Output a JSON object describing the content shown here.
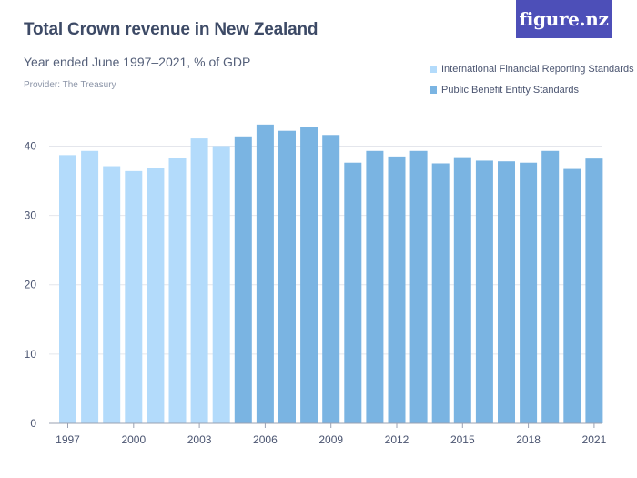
{
  "brand": {
    "logo_text": "figure.nz"
  },
  "chart_data": {
    "type": "bar",
    "title": "Total Crown revenue in New Zealand",
    "subtitle": "Year ended June 1997–2021, % of GDP",
    "provider": "Provider: The Treasury",
    "categories": [
      "1997",
      "1998",
      "1999",
      "2000",
      "2001",
      "2002",
      "2003",
      "2004",
      "2005",
      "2006",
      "2007",
      "2008",
      "2009",
      "2010",
      "2011",
      "2012",
      "2013",
      "2014",
      "2015",
      "2016",
      "2017",
      "2018",
      "2019",
      "2020",
      "2021"
    ],
    "series": [
      {
        "name": "International Financial Reporting Standards",
        "color": "#b3dbfb",
        "values": [
          38.7,
          39.3,
          37.1,
          36.4,
          36.9,
          38.3,
          41.1,
          40.0,
          null,
          null,
          null,
          null,
          null,
          null,
          null,
          null,
          null,
          null,
          null,
          null,
          null,
          null,
          null,
          null,
          null
        ]
      },
      {
        "name": "Public Benefit Entity Standards",
        "color": "#7ab4e2",
        "values": [
          null,
          null,
          null,
          null,
          null,
          null,
          null,
          null,
          41.4,
          43.1,
          42.2,
          42.8,
          41.6,
          37.6,
          39.3,
          38.5,
          39.3,
          37.5,
          38.4,
          37.9,
          37.8,
          37.6,
          39.3,
          36.7,
          38.2
        ]
      }
    ],
    "y_ticks": [
      0,
      10,
      20,
      30,
      40
    ],
    "x_tick_labels": [
      "1997",
      "2000",
      "2003",
      "2006",
      "2009",
      "2012",
      "2015",
      "2018",
      "2021"
    ],
    "xlabel": "",
    "ylabel": "",
    "ylim": [
      0,
      44
    ],
    "grid": true,
    "legend_position": "top-right"
  }
}
